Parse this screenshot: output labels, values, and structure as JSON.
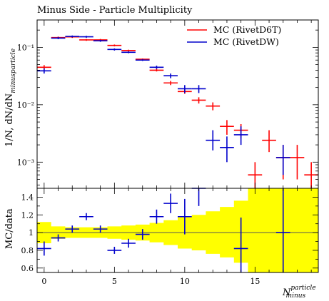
{
  "chart_data": {
    "type": "scatter",
    "title": "Minus Side - Particle Multiplicity",
    "x_label_main": "N",
    "x_label_sup": "particle",
    "x_label_sub": "minus",
    "xlim": [
      -0.5,
      19.5
    ],
    "x_ticks": [
      0,
      5,
      10,
      15
    ],
    "x_tick_labels": [
      "0",
      "5",
      "10",
      "15"
    ],
    "top_panel": {
      "y_label_main": "1/N, dN/dN",
      "y_label_sup": "particle",
      "y_label_sub": "minus",
      "y_scale": "log",
      "ylim": [
        0.00035,
        0.3
      ],
      "y_ticks": [
        0.1,
        0.01,
        0.001
      ],
      "y_tick_labels": [
        "10⁻¹",
        "10⁻²",
        "10⁻³"
      ],
      "legend_position": "top-right",
      "series": [
        {
          "name": "MC (RivetD6T)",
          "color": "#ff0000",
          "x": [
            0,
            1,
            2,
            3,
            4,
            5,
            6,
            7,
            8,
            9,
            10,
            11,
            12,
            13,
            14,
            15,
            16,
            17,
            18,
            19
          ],
          "y": [
            0.045,
            0.148,
            0.152,
            0.135,
            0.135,
            0.108,
            0.088,
            0.062,
            0.04,
            0.024,
            0.017,
            0.012,
            0.0095,
            0.0042,
            0.0036,
            0.0006,
            0.0024,
            0.0012,
            0.0012,
            0.0006
          ],
          "y_err_low": [
            0.004,
            0.006,
            0.006,
            0.005,
            0.005,
            0.004,
            0.003,
            0.002,
            0.002,
            0.002,
            0.0015,
            0.0015,
            0.0015,
            0.0012,
            0.001,
            0.0003,
            0.0009,
            0.0007,
            0.0007,
            0.0003
          ],
          "y_err_high": [
            0.004,
            0.006,
            0.006,
            0.005,
            0.005,
            0.004,
            0.003,
            0.002,
            0.002,
            0.002,
            0.0015,
            0.0015,
            0.0015,
            0.0012,
            0.001,
            0.0004,
            0.0012,
            0.0008,
            0.0008,
            0.0004
          ]
        },
        {
          "name": "MC (RivetDW)",
          "color": "#0000cc",
          "x": [
            0,
            1,
            2,
            3,
            4,
            5,
            6,
            7,
            8,
            9,
            10,
            11,
            12,
            13,
            14,
            15,
            16,
            17,
            18,
            19
          ],
          "y": [
            0.039,
            0.145,
            0.155,
            0.153,
            0.13,
            0.092,
            0.082,
            0.06,
            0.045,
            0.032,
            0.019,
            0.019,
            0.0024,
            0.0018,
            0.003,
            null,
            null,
            0.0012,
            null,
            null
          ],
          "y_err_low": [
            0.004,
            0.006,
            0.006,
            0.006,
            0.005,
            0.004,
            0.003,
            0.002,
            0.003,
            0.003,
            0.003,
            0.003,
            0.0008,
            0.0008,
            0.001,
            null,
            null,
            0.0006,
            null,
            null
          ],
          "y_err_high": [
            0.004,
            0.006,
            0.006,
            0.006,
            0.005,
            0.004,
            0.003,
            0.002,
            0.003,
            0.003,
            0.003,
            0.003,
            0.0012,
            0.001,
            0.0012,
            null,
            null,
            0.0008,
            null,
            null
          ]
        }
      ]
    },
    "bottom_panel": {
      "y_label": "MC/data",
      "ylim": [
        0.55,
        1.5
      ],
      "y_ticks": [
        0.6,
        0.8,
        1.0,
        1.2,
        1.4
      ],
      "y_tick_labels": [
        "0.6",
        "0.8",
        "1",
        "1.2",
        "1.4"
      ],
      "reference_line": 1,
      "band_color": "#ffff00",
      "band": {
        "x": [
          -0.5,
          0.5,
          1.5,
          2.5,
          3.5,
          4.5,
          5.5,
          6.5,
          7.5,
          8.5,
          9.5,
          10.5,
          11.5,
          12.5,
          13.5,
          14.5,
          15.5,
          16.5,
          17.5,
          18.5
        ],
        "low": [
          0.88,
          0.93,
          0.94,
          0.94,
          0.94,
          0.93,
          0.92,
          0.91,
          0.89,
          0.86,
          0.82,
          0.8,
          0.76,
          0.72,
          0.66,
          0.55,
          0.55,
          0.55,
          0.55,
          0.55
        ],
        "high": [
          1.12,
          1.07,
          1.06,
          1.06,
          1.06,
          1.07,
          1.08,
          1.09,
          1.11,
          1.14,
          1.18,
          1.2,
          1.24,
          1.29,
          1.36,
          1.5,
          1.5,
          1.5,
          1.5,
          1.5
        ]
      },
      "series": [
        {
          "name": "MC (RivetDW)",
          "color": "#0000cc",
          "x": [
            0,
            1,
            2,
            3,
            4,
            5,
            6,
            7,
            8,
            9,
            10,
            11,
            14,
            17
          ],
          "y": [
            0.82,
            0.94,
            1.04,
            1.18,
            1.04,
            0.8,
            0.88,
            0.98,
            1.18,
            1.33,
            1.18,
            1.5,
            0.82,
            1.0
          ],
          "y_err_low": [
            0.08,
            0.04,
            0.04,
            0.04,
            0.04,
            0.04,
            0.05,
            0.06,
            0.08,
            0.11,
            0.2,
            0.2,
            0.35,
            0.6
          ],
          "y_err_high": [
            0.08,
            0.04,
            0.04,
            0.04,
            0.04,
            0.04,
            0.05,
            0.06,
            0.08,
            0.11,
            0.2,
            0.2,
            0.35,
            0.6
          ]
        }
      ]
    }
  }
}
